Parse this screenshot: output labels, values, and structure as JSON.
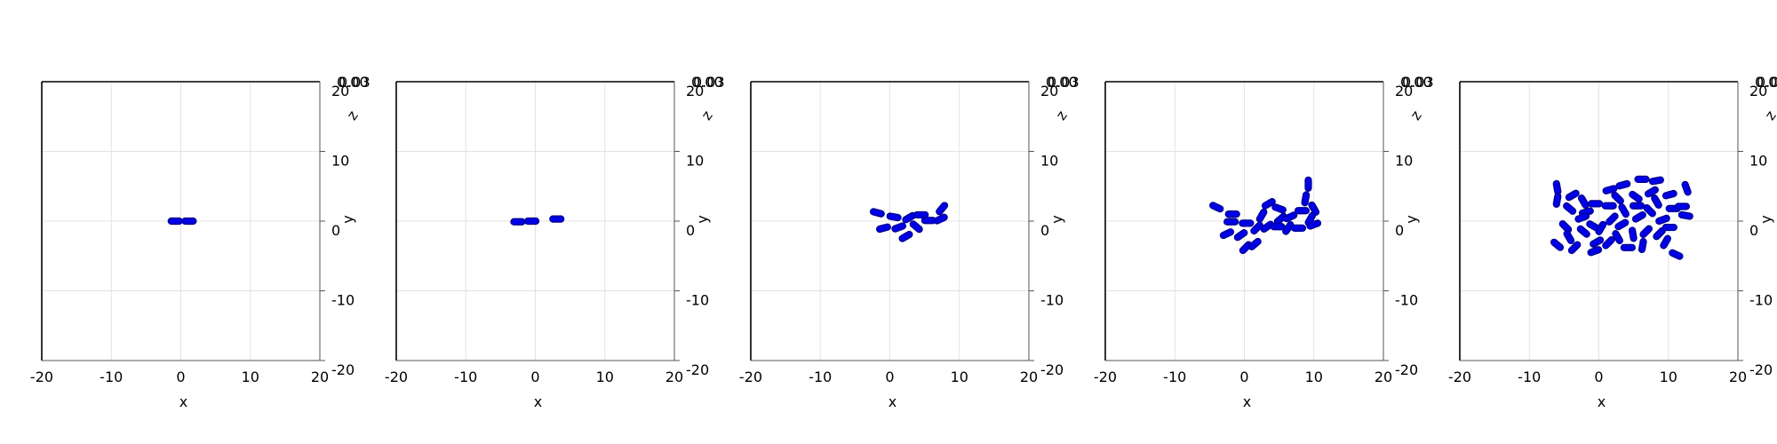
{
  "chart_data": [
    {
      "type": "scatter",
      "title": "",
      "xlabel": "x",
      "ylabel": "y",
      "zlabel": "z",
      "xlim": [
        -20,
        20
      ],
      "ylim": [
        -20,
        20
      ],
      "xticks": [
        "-20",
        "-10",
        "0",
        "10",
        "20"
      ],
      "yticks": [
        "-20",
        "-10",
        "0",
        "10",
        "20"
      ],
      "zticks": [
        "0.00",
        "0.03"
      ],
      "grid": true,
      "rods": [
        {
          "x": -0.8,
          "y": 0.0,
          "angle": 0
        },
        {
          "x": 1.2,
          "y": 0.0,
          "angle": 0
        }
      ]
    },
    {
      "type": "scatter",
      "title": "",
      "xlabel": "x",
      "ylabel": "y",
      "zlabel": "z",
      "xlim": [
        -20,
        20
      ],
      "ylim": [
        -20,
        20
      ],
      "xticks": [
        "-20",
        "-10",
        "0",
        "10",
        "20"
      ],
      "yticks": [
        "-20",
        "-10",
        "0",
        "10",
        "20"
      ],
      "zticks": [
        "0.00",
        "0.03"
      ],
      "grid": true,
      "rods": [
        {
          "x": -2.5,
          "y": -0.1,
          "angle": 0
        },
        {
          "x": -0.5,
          "y": 0.0,
          "angle": 0
        },
        {
          "x": 3.1,
          "y": 0.3,
          "angle": 0
        }
      ]
    },
    {
      "type": "scatter",
      "title": "",
      "xlabel": "x",
      "ylabel": "y",
      "zlabel": "z",
      "xlim": [
        -20,
        20
      ],
      "ylim": [
        -20,
        20
      ],
      "xticks": [
        "-20",
        "-10",
        "0",
        "10",
        "20"
      ],
      "yticks": [
        "-20",
        "-10",
        "0",
        "10",
        "20"
      ],
      "zticks": [
        "0.00",
        "0.03"
      ],
      "grid": true,
      "rods": [
        {
          "x": -1.8,
          "y": 1.2,
          "angle": -15
        },
        {
          "x": 0.6,
          "y": 0.6,
          "angle": -10
        },
        {
          "x": 2.8,
          "y": 0.5,
          "angle": 30
        },
        {
          "x": 4.5,
          "y": 0.9,
          "angle": 0
        },
        {
          "x": 7.5,
          "y": 1.8,
          "angle": 50
        },
        {
          "x": 7.3,
          "y": 0.3,
          "angle": 25
        },
        {
          "x": 5.6,
          "y": 0.1,
          "angle": 0
        },
        {
          "x": 3.8,
          "y": -0.8,
          "angle": -40
        },
        {
          "x": 1.3,
          "y": -0.9,
          "angle": 20
        },
        {
          "x": -0.9,
          "y": -1.0,
          "angle": 15
        },
        {
          "x": 2.3,
          "y": -2.2,
          "angle": 30
        }
      ]
    },
    {
      "type": "scatter",
      "title": "",
      "xlabel": "x",
      "ylabel": "y",
      "zlabel": "z",
      "xlim": [
        -20,
        20
      ],
      "ylim": [
        -20,
        20
      ],
      "xticks": [
        "-20",
        "-10",
        "0",
        "10",
        "20"
      ],
      "yticks": [
        "-20",
        "-10",
        "0",
        "10",
        "20"
      ],
      "zticks": [
        "0.00",
        "0.03"
      ],
      "grid": true,
      "rods": [
        {
          "x": -4.0,
          "y": 2.0,
          "angle": -25
        },
        {
          "x": -1.7,
          "y": 1.0,
          "angle": 0
        },
        {
          "x": -1.9,
          "y": -0.1,
          "angle": 0
        },
        {
          "x": 0.3,
          "y": -0.3,
          "angle": 0
        },
        {
          "x": -2.5,
          "y": -1.8,
          "angle": 25
        },
        {
          "x": -0.5,
          "y": -2.0,
          "angle": 35
        },
        {
          "x": 0.2,
          "y": -3.8,
          "angle": 45
        },
        {
          "x": 1.5,
          "y": -3.3,
          "angle": 40
        },
        {
          "x": 1.8,
          "y": -1.0,
          "angle": 45
        },
        {
          "x": 2.5,
          "y": 0.8,
          "angle": 60
        },
        {
          "x": 3.5,
          "y": 2.5,
          "angle": 30
        },
        {
          "x": 3.3,
          "y": -0.8,
          "angle": 35
        },
        {
          "x": 5.0,
          "y": 1.8,
          "angle": -20
        },
        {
          "x": 5.2,
          "y": 0.3,
          "angle": 40
        },
        {
          "x": 4.8,
          "y": -0.8,
          "angle": 0
        },
        {
          "x": 6.3,
          "y": -1.0,
          "angle": 55
        },
        {
          "x": 6.6,
          "y": 0.6,
          "angle": 25
        },
        {
          "x": 8.3,
          "y": 1.5,
          "angle": 0
        },
        {
          "x": 8.8,
          "y": 3.2,
          "angle": 80
        },
        {
          "x": 9.2,
          "y": 5.3,
          "angle": 90
        },
        {
          "x": 10.0,
          "y": 1.8,
          "angle": -60
        },
        {
          "x": 9.5,
          "y": 0.3,
          "angle": 60
        },
        {
          "x": 7.8,
          "y": -1.0,
          "angle": 0
        },
        {
          "x": 10.0,
          "y": -0.5,
          "angle": 20
        }
      ]
    },
    {
      "type": "scatter",
      "title": "",
      "xlabel": "x",
      "ylabel": "y",
      "zlabel": "z",
      "xlim": [
        -20,
        20
      ],
      "ylim": [
        -20,
        20
      ],
      "xticks": [
        "-20",
        "-10",
        "0",
        "10",
        "20"
      ],
      "yticks": [
        "-20",
        "-10",
        "0",
        "10",
        "20"
      ],
      "zticks": [
        "0.00",
        "0.03"
      ],
      "grid": true,
      "rods": [
        {
          "x": -6.0,
          "y": 4.8,
          "angle": -80
        },
        {
          "x": -6.0,
          "y": 3.0,
          "angle": 80
        },
        {
          "x": -3.8,
          "y": 3.7,
          "angle": 30
        },
        {
          "x": -4.2,
          "y": 1.8,
          "angle": -40
        },
        {
          "x": -2.2,
          "y": 2.8,
          "angle": -60
        },
        {
          "x": -0.5,
          "y": 2.5,
          "angle": 0
        },
        {
          "x": 1.6,
          "y": 4.5,
          "angle": 15
        },
        {
          "x": 3.5,
          "y": 5.2,
          "angle": 15
        },
        {
          "x": 6.2,
          "y": 6.0,
          "angle": 0
        },
        {
          "x": 8.3,
          "y": 5.8,
          "angle": 10
        },
        {
          "x": 10.2,
          "y": 3.8,
          "angle": 15
        },
        {
          "x": 12.6,
          "y": 4.7,
          "angle": -70
        },
        {
          "x": 7.6,
          "y": 4.2,
          "angle": 30
        },
        {
          "x": 5.3,
          "y": 3.5,
          "angle": -35
        },
        {
          "x": 2.7,
          "y": 3.3,
          "angle": -45
        },
        {
          "x": 1.5,
          "y": 2.2,
          "angle": 0
        },
        {
          "x": -1.8,
          "y": 1.3,
          "angle": 15
        },
        {
          "x": -4.8,
          "y": -0.8,
          "angle": -45
        },
        {
          "x": -4.3,
          "y": -2.3,
          "angle": -60
        },
        {
          "x": -6.0,
          "y": -3.4,
          "angle": -40
        },
        {
          "x": -3.5,
          "y": -3.8,
          "angle": 45
        },
        {
          "x": -2.2,
          "y": -1.5,
          "angle": -40
        },
        {
          "x": -2.4,
          "y": 0.5,
          "angle": 20
        },
        {
          "x": -0.8,
          "y": -0.7,
          "angle": -30
        },
        {
          "x": 0.3,
          "y": -1.0,
          "angle": 60
        },
        {
          "x": -0.3,
          "y": -3.0,
          "angle": 30
        },
        {
          "x": -0.6,
          "y": -4.3,
          "angle": 20
        },
        {
          "x": 1.4,
          "y": -3.1,
          "angle": 45
        },
        {
          "x": 2.7,
          "y": -2.3,
          "angle": -60
        },
        {
          "x": 1.9,
          "y": 0.3,
          "angle": 45
        },
        {
          "x": 3.6,
          "y": 1.5,
          "angle": -60
        },
        {
          "x": 3.3,
          "y": -0.5,
          "angle": 30
        },
        {
          "x": 4.9,
          "y": -1.9,
          "angle": -80
        },
        {
          "x": 4.2,
          "y": -3.8,
          "angle": 0
        },
        {
          "x": 6.3,
          "y": -3.5,
          "angle": 80
        },
        {
          "x": 6.8,
          "y": -1.5,
          "angle": 45
        },
        {
          "x": 5.8,
          "y": 0.6,
          "angle": 30
        },
        {
          "x": 5.5,
          "y": 2.2,
          "angle": 0
        },
        {
          "x": 7.3,
          "y": 1.5,
          "angle": -45
        },
        {
          "x": 8.3,
          "y": 2.8,
          "angle": -60
        },
        {
          "x": 9.2,
          "y": 0.2,
          "angle": 20
        },
        {
          "x": 8.7,
          "y": -1.8,
          "angle": 45
        },
        {
          "x": 9.6,
          "y": -3.0,
          "angle": 60
        },
        {
          "x": 10.2,
          "y": -0.9,
          "angle": 0
        },
        {
          "x": 10.7,
          "y": 1.8,
          "angle": 0
        },
        {
          "x": 11.1,
          "y": -4.8,
          "angle": -25
        },
        {
          "x": 12.5,
          "y": 0.8,
          "angle": -10
        },
        {
          "x": 12.0,
          "y": 2.1,
          "angle": 0
        }
      ]
    }
  ]
}
